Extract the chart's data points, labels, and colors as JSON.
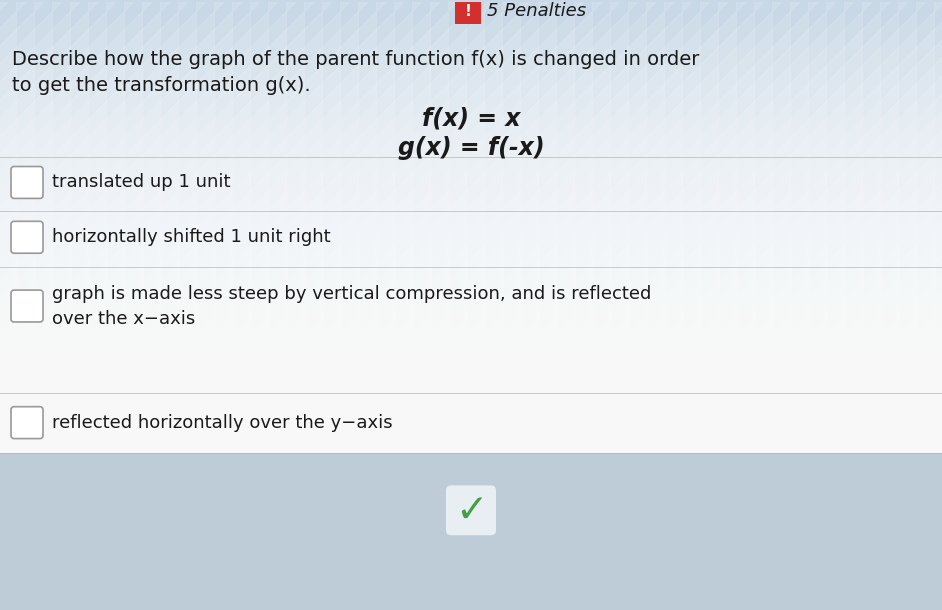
{
  "bg_color": "#c9d8e6",
  "penalties_bg": "#d32f2f",
  "penalties_label": "5 Penalties",
  "question_line1": "Describe how the graph of the parent function f(x) is changed in order",
  "question_line2": "to get the transformation g(x).",
  "fx_label": "f(x) = x",
  "gx_label": "g(x) = f(-x)",
  "choices": [
    "translated up 1 unit",
    "horizontally shifted 1 unit right",
    "graph is made less steep by vertical compression, and is reflected\nover the x−axis",
    "reflected horizontally over the y−axis"
  ],
  "text_color": "#1a1a1a",
  "divider_color": "#aaaaaa",
  "check_color": "#43a047",
  "footer_color": "#8da8bb",
  "stripe_color_light": "#d8e6f0",
  "stripe_color_dark": "#bfcfde"
}
